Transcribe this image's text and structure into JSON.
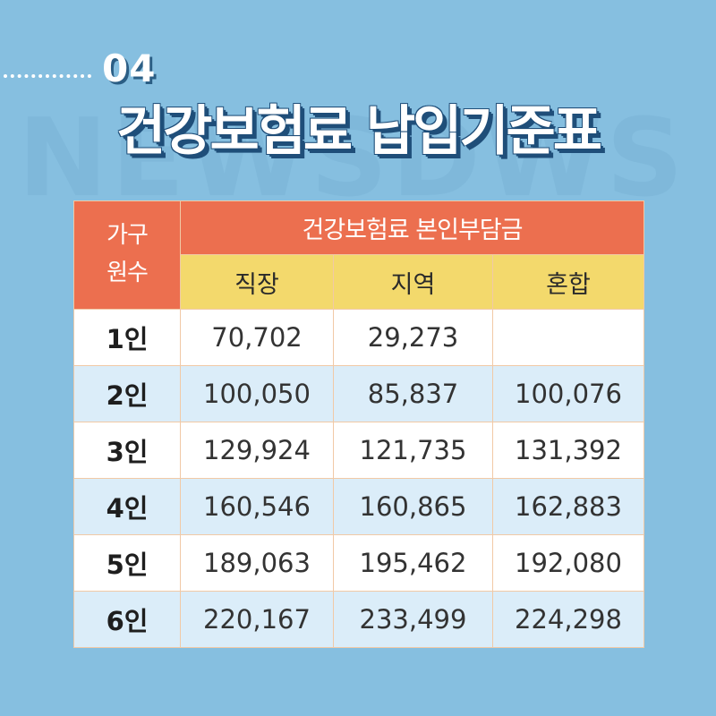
{
  "watermark": "NEWSDWS",
  "section": {
    "number": "04"
  },
  "title": "건강보험료 납입기준표",
  "table": {
    "corner_header": [
      "가구",
      "원수"
    ],
    "group_header": "건강보험료 본인부담금",
    "columns": [
      "직장",
      "지역",
      "혼합"
    ],
    "rows": [
      {
        "label": "1인",
        "values": [
          "70,702",
          "29,273",
          ""
        ]
      },
      {
        "label": "2인",
        "values": [
          "100,050",
          "85,837",
          "100,076"
        ]
      },
      {
        "label": "3인",
        "values": [
          "129,924",
          "121,735",
          "131,392"
        ]
      },
      {
        "label": "4인",
        "values": [
          "160,546",
          "160,865",
          "162,883"
        ]
      },
      {
        "label": "5인",
        "values": [
          "189,063",
          "195,462",
          "192,080"
        ]
      },
      {
        "label": "6인",
        "values": [
          "220,167",
          "233,499",
          "224,298"
        ]
      }
    ]
  },
  "colors": {
    "background": "#86bfe0",
    "header_orange": "#ec6f4f",
    "header_yellow": "#f3d96c",
    "row_blue": "#dbedf9",
    "row_white": "#ffffff"
  }
}
